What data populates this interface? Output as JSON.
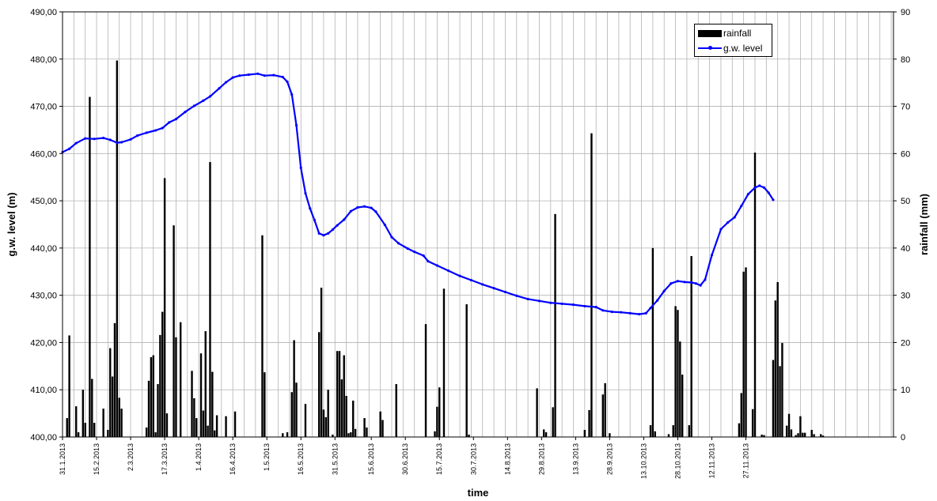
{
  "chart_data": {
    "type": "bar+line",
    "xlabel": "time",
    "ylabel_left": "g.w. level (m)",
    "ylabel_right": "rainfall (mm)",
    "ylim_left": [
      400,
      490
    ],
    "ylim_right": [
      0,
      90
    ],
    "yticks_left": [
      "400,00",
      "410,00",
      "420,00",
      "430,00",
      "440,00",
      "450,00",
      "460,00",
      "470,00",
      "480,00",
      "490,00"
    ],
    "yticks_right": [
      "0",
      "10",
      "20",
      "30",
      "40",
      "50",
      "60",
      "70",
      "80",
      "90"
    ],
    "xlim_days": [
      0,
      366
    ],
    "grid": true,
    "legend_position": "top-right",
    "x_ticks": [
      {
        "day": 0,
        "label": "31.1.2013"
      },
      {
        "day": 15,
        "label": "15.2.2013"
      },
      {
        "day": 30,
        "label": "2.3.2013"
      },
      {
        "day": 45,
        "label": "17.3.2013"
      },
      {
        "day": 60,
        "label": "1.4.2013"
      },
      {
        "day": 75,
        "label": "16.4.2013"
      },
      {
        "day": 90,
        "label": "1.5.2013"
      },
      {
        "day": 105,
        "label": "16.5.2013"
      },
      {
        "day": 120,
        "label": "31.5.2013"
      },
      {
        "day": 136,
        "label": "15.6.2013"
      },
      {
        "day": 151,
        "label": "30.6.2013"
      },
      {
        "day": 166,
        "label": "15.7.2013"
      },
      {
        "day": 181,
        "label": "30.7.2013"
      },
      {
        "day": 196,
        "label": "14.8.2013"
      },
      {
        "day": 211,
        "label": "29.8.2013"
      },
      {
        "day": 226,
        "label": "13.9.2013"
      },
      {
        "day": 241,
        "label": "28.9.2013"
      },
      {
        "day": 256,
        "label": "13.10.2013"
      },
      {
        "day": 271,
        "label": "28.10.2013"
      },
      {
        "day": 286,
        "label": "12.11.2013"
      },
      {
        "day": 301,
        "label": "27.11.2013"
      }
    ],
    "series": [
      {
        "name": "rainfall",
        "type": "bar",
        "axis": "right",
        "color": "#000000",
        "points": [
          [
            2,
            4
          ],
          [
            3,
            21.5
          ],
          [
            6,
            6.5
          ],
          [
            7,
            1
          ],
          [
            9,
            10
          ],
          [
            10,
            3
          ],
          [
            12,
            72
          ],
          [
            13,
            12.3
          ],
          [
            14,
            3
          ],
          [
            18,
            6
          ],
          [
            20,
            1.5
          ],
          [
            21,
            18.8
          ],
          [
            22,
            12.8
          ],
          [
            23,
            24.1
          ],
          [
            24,
            79.7
          ],
          [
            25,
            8.3
          ],
          [
            26,
            6
          ],
          [
            37,
            2
          ],
          [
            38,
            11.9
          ],
          [
            39,
            16.9
          ],
          [
            40,
            17.3
          ],
          [
            41,
            1
          ],
          [
            42,
            11.2
          ],
          [
            43,
            21.6
          ],
          [
            44,
            26.5
          ],
          [
            45,
            54.8
          ],
          [
            46,
            5
          ],
          [
            49,
            44.8
          ],
          [
            50,
            21.1
          ],
          [
            52,
            24.3
          ],
          [
            57,
            14
          ],
          [
            58,
            8.2
          ],
          [
            59,
            4
          ],
          [
            61,
            17.7
          ],
          [
            62,
            5.6
          ],
          [
            63,
            22.4
          ],
          [
            64,
            2.4
          ],
          [
            65,
            58.2
          ],
          [
            66,
            13.8
          ],
          [
            67,
            1.4
          ],
          [
            68,
            4.6
          ],
          [
            72,
            4.4
          ],
          [
            76,
            5.4
          ],
          [
            88,
            42.7
          ],
          [
            89,
            13.7
          ],
          [
            97,
            0.8
          ],
          [
            99,
            1
          ],
          [
            101,
            9.5
          ],
          [
            102,
            20.5
          ],
          [
            103,
            11.5
          ],
          [
            107,
            7
          ],
          [
            113,
            22.2
          ],
          [
            114,
            31.6
          ],
          [
            115,
            5.8
          ],
          [
            116,
            4.2
          ],
          [
            117,
            10
          ],
          [
            119,
            0.5
          ],
          [
            121,
            18.2
          ],
          [
            122,
            18.2
          ],
          [
            123,
            12.2
          ],
          [
            124,
            17.3
          ],
          [
            125,
            8.7
          ],
          [
            126,
            0.8
          ],
          [
            127,
            1
          ],
          [
            128,
            7.7
          ],
          [
            129,
            1.7
          ],
          [
            133,
            4
          ],
          [
            134,
            2
          ],
          [
            140,
            5.4
          ],
          [
            141,
            3.6
          ],
          [
            147,
            11.2
          ],
          [
            160,
            23.9
          ],
          [
            164,
            1.2
          ],
          [
            165,
            6.4
          ],
          [
            166,
            10.5
          ],
          [
            168,
            31.4
          ],
          [
            178,
            28.1
          ],
          [
            179,
            0.5
          ],
          [
            209,
            10.3
          ],
          [
            212,
            1.6
          ],
          [
            213,
            1
          ],
          [
            216,
            6.3
          ],
          [
            217,
            47.2
          ],
          [
            230,
            1.5
          ],
          [
            232,
            5.7
          ],
          [
            233,
            64.3
          ],
          [
            238,
            9
          ],
          [
            239,
            11.4
          ],
          [
            241,
            0.8
          ],
          [
            259,
            2.5
          ],
          [
            260,
            40
          ],
          [
            261,
            1.2
          ],
          [
            267,
            0.6
          ],
          [
            269,
            2.5
          ],
          [
            270,
            27.7
          ],
          [
            271,
            26.9
          ],
          [
            272,
            20.2
          ],
          [
            273,
            13.2
          ],
          [
            276,
            2.5
          ],
          [
            277,
            38.3
          ],
          [
            298,
            2.9
          ],
          [
            299,
            9.3
          ],
          [
            300,
            35
          ],
          [
            301,
            35.9
          ],
          [
            304,
            5.9
          ],
          [
            305,
            60.2
          ],
          [
            308,
            0.5
          ],
          [
            309,
            0.4
          ],
          [
            313,
            16.3
          ],
          [
            314,
            28.9
          ],
          [
            315,
            32.8
          ],
          [
            316,
            15
          ],
          [
            317,
            19.9
          ],
          [
            319,
            2.4
          ],
          [
            320,
            4.9
          ],
          [
            321,
            1.6
          ],
          [
            323,
            0.4
          ],
          [
            324,
            0.8
          ],
          [
            325,
            4.4
          ],
          [
            326,
            0.9
          ],
          [
            327,
            0.9
          ],
          [
            330,
            1.5
          ],
          [
            331,
            0.6
          ],
          [
            334,
            0.6
          ],
          [
            335,
            0.3
          ]
        ]
      },
      {
        "name": "g.w. level",
        "type": "line",
        "axis": "left",
        "color": "#0000ff",
        "points": [
          [
            0,
            460.3
          ],
          [
            3,
            461
          ],
          [
            6,
            462.2
          ],
          [
            10,
            463.2
          ],
          [
            14,
            463.1
          ],
          [
            18,
            463.3
          ],
          [
            21,
            462.9
          ],
          [
            24,
            462.3
          ],
          [
            26,
            462.4
          ],
          [
            30,
            463
          ],
          [
            33,
            463.8
          ],
          [
            37,
            464.4
          ],
          [
            41,
            464.9
          ],
          [
            44,
            465.4
          ],
          [
            47,
            466.6
          ],
          [
            50,
            467.3
          ],
          [
            54,
            468.8
          ],
          [
            58,
            470.1
          ],
          [
            62,
            471.2
          ],
          [
            65,
            472.1
          ],
          [
            69,
            473.8
          ],
          [
            72,
            475.1
          ],
          [
            75,
            476.1
          ],
          [
            78,
            476.5
          ],
          [
            82,
            476.7
          ],
          [
            86,
            476.9
          ],
          [
            89,
            476.5
          ],
          [
            93,
            476.6
          ],
          [
            97,
            476.2
          ],
          [
            99,
            475.2
          ],
          [
            101,
            472.5
          ],
          [
            103,
            466
          ],
          [
            105,
            457
          ],
          [
            107,
            451.6
          ],
          [
            109,
            448.4
          ],
          [
            111,
            445.9
          ],
          [
            113,
            443.1
          ],
          [
            115,
            442.7
          ],
          [
            117,
            443.1
          ],
          [
            119,
            443.9
          ],
          [
            121,
            444.8
          ],
          [
            124,
            446
          ],
          [
            127,
            447.8
          ],
          [
            130,
            448.6
          ],
          [
            133,
            448.8
          ],
          [
            136,
            448.5
          ],
          [
            138,
            447.7
          ],
          [
            142,
            444.9
          ],
          [
            145,
            442.3
          ],
          [
            148,
            441
          ],
          [
            152,
            439.9
          ],
          [
            155,
            439.2
          ],
          [
            159,
            438.4
          ],
          [
            161,
            437.2
          ],
          [
            165,
            436.3
          ],
          [
            170,
            435.2
          ],
          [
            175,
            434.1
          ],
          [
            180,
            433.2
          ],
          [
            185,
            432.3
          ],
          [
            190,
            431.5
          ],
          [
            195,
            430.7
          ],
          [
            200,
            429.9
          ],
          [
            205,
            429.2
          ],
          [
            210,
            428.8
          ],
          [
            215,
            428.4
          ],
          [
            220,
            428.2
          ],
          [
            225,
            428
          ],
          [
            230,
            427.7
          ],
          [
            235,
            427.5
          ],
          [
            238,
            426.8
          ],
          [
            242,
            426.5
          ],
          [
            246,
            426.4
          ],
          [
            250,
            426.2
          ],
          [
            254,
            426
          ],
          [
            257,
            426.2
          ],
          [
            259,
            427.3
          ],
          [
            262,
            428.9
          ],
          [
            265,
            430.9
          ],
          [
            268,
            432.5
          ],
          [
            271,
            433
          ],
          [
            274,
            432.8
          ],
          [
            277,
            432.7
          ],
          [
            279,
            432.5
          ],
          [
            281,
            432.1
          ],
          [
            283,
            433.3
          ],
          [
            286,
            438.5
          ],
          [
            290,
            444
          ],
          [
            293,
            445.4
          ],
          [
            296,
            446.5
          ],
          [
            299,
            448.9
          ],
          [
            302,
            451.4
          ],
          [
            305,
            452.8
          ],
          [
            307,
            453.2
          ],
          [
            309,
            452.8
          ],
          [
            311,
            451.7
          ],
          [
            313,
            450.2
          ]
        ]
      }
    ]
  }
}
